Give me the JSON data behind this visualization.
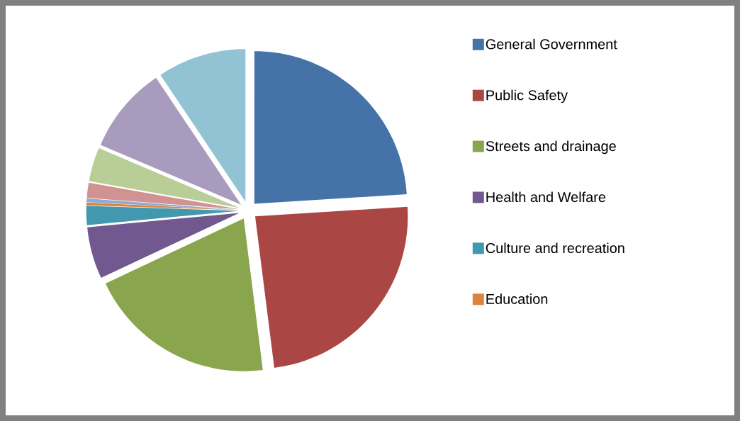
{
  "chart_data": {
    "type": "pie",
    "categories": [
      "General Government",
      "Public Safety",
      "Streets and drainage",
      "Health and Welfare",
      "Culture and recreation",
      "Education",
      null,
      null,
      null,
      null,
      null
    ],
    "values": [
      24,
      24,
      20,
      5.5,
      2,
      0.3,
      0.4,
      1.6,
      3.6,
      9.2,
      9.4
    ],
    "colors": [
      "#4572a7",
      "#aa4643",
      "#89a54e",
      "#71588f",
      "#4198af",
      "#db843d",
      "#93a9cf",
      "#d19392",
      "#b9cd96",
      "#a99bbd",
      "#92c3d4"
    ],
    "legend": "right"
  }
}
